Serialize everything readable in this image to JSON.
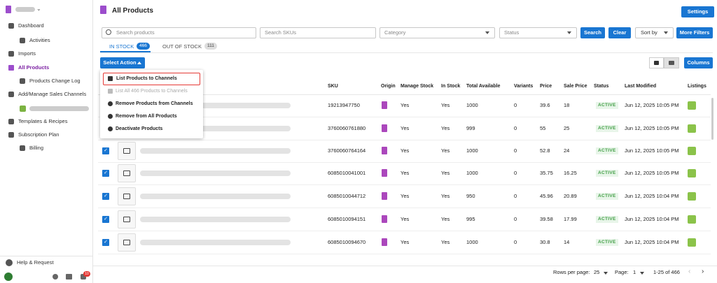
{
  "sidebar": {
    "nav": [
      "Dashboard",
      "Activities",
      "Imports",
      "All Products",
      "Products Change Log",
      "Add/Manage Sales Channels",
      "Templates & Recipes",
      "Subscription Plan",
      "Billing"
    ],
    "help": "Help & Request",
    "badge": "10"
  },
  "header": {
    "title": "All Products",
    "settings": "Settings"
  },
  "filters": {
    "search_placeholder": "Search products",
    "sku_placeholder": "Search SKUs",
    "category": "Category",
    "status": "Status",
    "search": "Search",
    "clear": "Clear",
    "sort": "Sort by",
    "more": "More Filters"
  },
  "tabs": [
    {
      "label": "IN STOCK",
      "count": "466"
    },
    {
      "label": "OUT OF STOCK",
      "count": "111"
    }
  ],
  "toolbar": {
    "select_action": "Select Action",
    "columns": "Columns"
  },
  "menu": [
    "List Products to Channels",
    "List All 466 Products to Channels",
    "Remove Products from Channels",
    "Remove from All Products",
    "Deactivate Products"
  ],
  "table": {
    "columns": [
      "SKU",
      "Origin",
      "Manage Stock",
      "In Stock",
      "Total Available",
      "Variants",
      "Price",
      "Sale Price",
      "Status",
      "Last Modified",
      "Listings"
    ],
    "rows": [
      [
        "19213947750",
        "Yes",
        "Yes",
        "1000",
        "0",
        "39.6",
        "18",
        "ACTIVE",
        "Jun 12, 2025 10:05 PM"
      ],
      [
        "3760060761880",
        "Yes",
        "Yes",
        "999",
        "0",
        "55",
        "25",
        "ACTIVE",
        "Jun 12, 2025 10:05 PM"
      ],
      [
        "3760060764164",
        "Yes",
        "Yes",
        "1000",
        "0",
        "52.8",
        "24",
        "ACTIVE",
        "Jun 12, 2025 10:05 PM"
      ],
      [
        "6085010041001",
        "Yes",
        "Yes",
        "1000",
        "0",
        "35.75",
        "16.25",
        "ACTIVE",
        "Jun 12, 2025 10:05 PM"
      ],
      [
        "6085010044712",
        "Yes",
        "Yes",
        "950",
        "0",
        "45.96",
        "20.89",
        "ACTIVE",
        "Jun 12, 2025 10:04 PM"
      ],
      [
        "6085010094151",
        "Yes",
        "Yes",
        "995",
        "0",
        "39.58",
        "17.99",
        "ACTIVE",
        "Jun 12, 2025 10:04 PM"
      ],
      [
        "6085010094670",
        "Yes",
        "Yes",
        "1000",
        "0",
        "30.8",
        "14",
        "ACTIVE",
        "Jun 12, 2025 10:04 PM"
      ]
    ]
  },
  "pagination": {
    "rows_per_page": "Rows per page:",
    "page_size": "25",
    "page_label": "Page:",
    "page": "1",
    "range": "1-25 of 466"
  }
}
